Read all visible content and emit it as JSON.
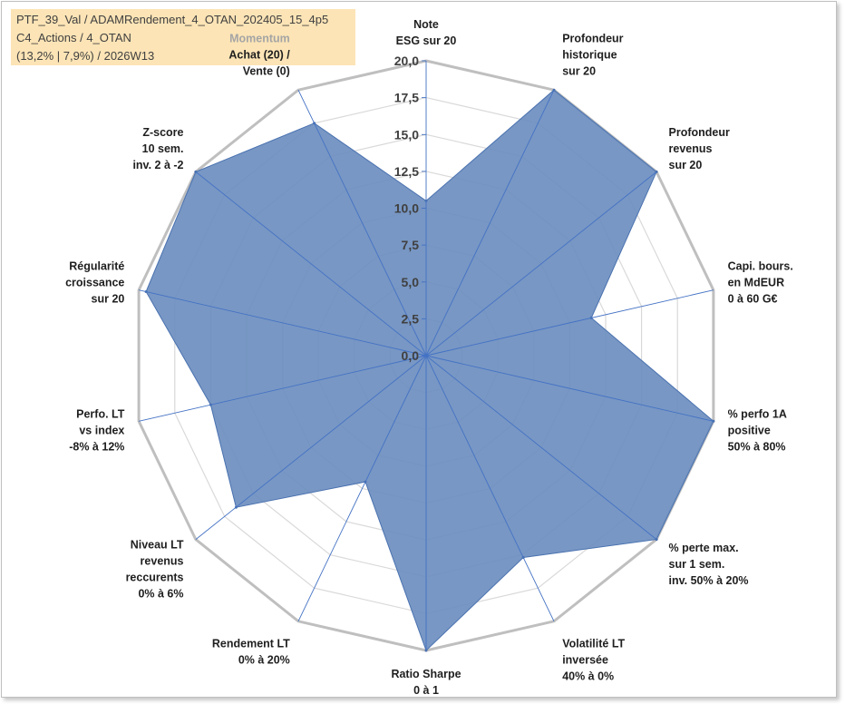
{
  "info": {
    "line1": "PTF_39_Val / ADAMRendement_4_OTAN_202405_15_4p5",
    "line2": "C4_Actions / 4_OTAN",
    "line3": "(13,2% | 7,9%) / 2026W13"
  },
  "colors": {
    "fill": "#6c8ebf",
    "stroke": "#4a72b0",
    "outer_ring": "#bfbfbf",
    "grid": "#d9d9d9",
    "spoke": "#4472c4",
    "info_bg": "#fce4b6"
  },
  "chart_data": {
    "type": "radar",
    "r_max": 20,
    "ticks": [
      "0,0",
      "2,5",
      "5,0",
      "7,5",
      "10,0",
      "12,5",
      "15,0",
      "17,5",
      "20,0"
    ],
    "axes": [
      {
        "lines": [
          "Note",
          "ESG sur 20"
        ],
        "value": 10.5
      },
      {
        "lines": [
          "Profondeur",
          "historique",
          "sur 20"
        ],
        "value": 20
      },
      {
        "lines": [
          "Profondeur",
          "revenus",
          "sur 20"
        ],
        "value": 20
      },
      {
        "lines": [
          "Capi. bours.",
          "en MdEUR",
          "0 à 60 G€"
        ],
        "value": 11.5
      },
      {
        "lines": [
          "% perfo 1A",
          "positive",
          "50% à 80%"
        ],
        "value": 20
      },
      {
        "lines": [
          "% perte max.",
          "sur 1 sem.",
          "inv. 50% à 20%"
        ],
        "value": 20
      },
      {
        "lines": [
          "Volatilité LT",
          "inversée",
          "40% à 0%"
        ],
        "value": 15.2
      },
      {
        "lines": [
          "Ratio Sharpe",
          "0 à 1"
        ],
        "value": 20
      },
      {
        "lines": [
          "Rendement LT",
          "0% à 20%"
        ],
        "value": 9.5
      },
      {
        "lines": [
          "Niveau LT",
          "revenus",
          "reccurents",
          "0% à 6%"
        ],
        "value": 16.5
      },
      {
        "lines": [
          "Perfo. LT",
          "vs index",
          "-8% à 12%"
        ],
        "value": 15
      },
      {
        "lines": [
          "Régularité",
          "croissance",
          "sur 20"
        ],
        "value": 19.5
      },
      {
        "lines": [
          "Z-score",
          "10 sem.",
          "inv. 2 à -2"
        ],
        "value": 20
      },
      {
        "lines": [
          "Momentum",
          "Achat (20) /",
          "Vente (0)"
        ],
        "value": 17.5
      }
    ]
  }
}
